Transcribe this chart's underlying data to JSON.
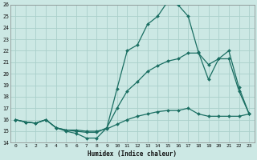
{
  "title": "",
  "xlabel": "Humidex (Indice chaleur)",
  "xlim": [
    -0.5,
    23.5
  ],
  "ylim": [
    14,
    26
  ],
  "xticks": [
    0,
    1,
    2,
    3,
    4,
    5,
    6,
    7,
    8,
    9,
    10,
    11,
    12,
    13,
    14,
    15,
    16,
    17,
    18,
    19,
    20,
    21,
    22,
    23
  ],
  "yticks": [
    14,
    15,
    16,
    17,
    18,
    19,
    20,
    21,
    22,
    23,
    24,
    25,
    26
  ],
  "background_color": "#cce8e4",
  "grid_color": "#aacfca",
  "line_color": "#1a6e62",
  "line1_x": [
    0,
    1,
    2,
    3,
    4,
    5,
    6,
    7,
    8,
    9,
    10,
    11,
    12,
    13,
    14,
    15,
    16,
    17,
    18,
    19,
    20,
    21,
    22,
    23
  ],
  "line1_y": [
    16.0,
    15.8,
    15.7,
    16.0,
    15.3,
    15.0,
    14.8,
    14.4,
    14.4,
    15.3,
    18.7,
    22.0,
    22.5,
    24.3,
    25.0,
    26.3,
    26.0,
    25.0,
    21.9,
    19.5,
    21.3,
    22.0,
    18.8,
    16.5
  ],
  "line2_x": [
    0,
    1,
    2,
    3,
    4,
    5,
    6,
    7,
    8,
    9,
    10,
    11,
    12,
    13,
    14,
    15,
    16,
    17,
    18,
    19,
    20,
    21,
    22,
    23
  ],
  "line2_y": [
    16.0,
    15.8,
    15.7,
    16.0,
    15.3,
    15.1,
    15.0,
    14.9,
    14.9,
    15.3,
    17.0,
    18.5,
    19.3,
    20.2,
    20.7,
    21.1,
    21.3,
    21.8,
    21.8,
    20.8,
    21.3,
    21.3,
    18.5,
    16.5
  ],
  "line3_x": [
    0,
    1,
    2,
    3,
    4,
    5,
    6,
    7,
    8,
    9,
    10,
    11,
    12,
    13,
    14,
    15,
    16,
    17,
    18,
    19,
    20,
    21,
    22,
    23
  ],
  "line3_y": [
    16.0,
    15.8,
    15.7,
    16.0,
    15.3,
    15.1,
    15.1,
    15.0,
    15.0,
    15.2,
    15.6,
    16.0,
    16.3,
    16.5,
    16.7,
    16.8,
    16.8,
    17.0,
    16.5,
    16.3,
    16.3,
    16.3,
    16.3,
    16.5
  ]
}
